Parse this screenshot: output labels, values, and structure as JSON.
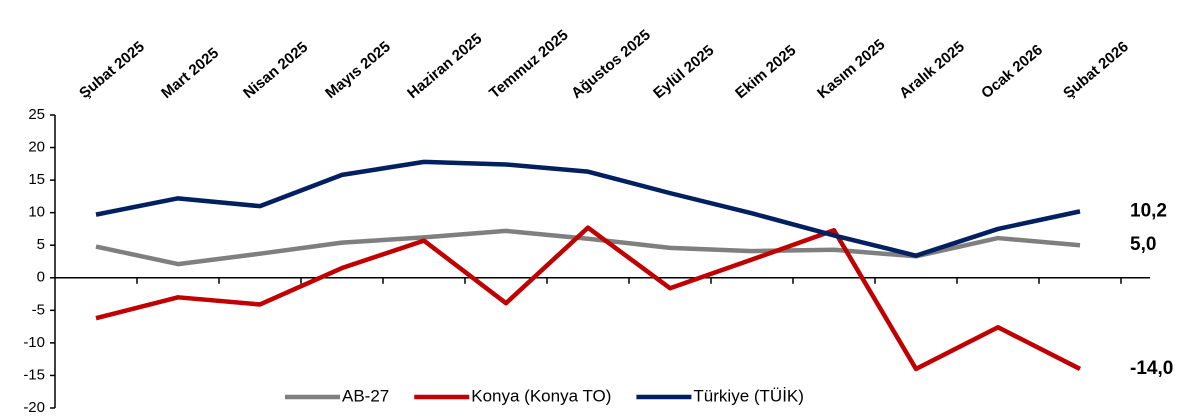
{
  "chart_data": {
    "type": "line",
    "categories": [
      "Şubat 2025",
      "Mart 2025",
      "Nisan 2025",
      "Mayıs 2025",
      "Haziran 2025",
      "Temmuz 2025",
      "Ağustos 2025",
      "Eylül 2025",
      "Ekim 2025",
      "Kasım 2025",
      "Aralık 2025",
      "Ocak 2026",
      "Şubat 2026"
    ],
    "series": [
      {
        "name": "AB-27",
        "color": "#7f7f7f",
        "values": [
          4.8,
          2.1,
          3.7,
          5.4,
          6.2,
          7.2,
          6.0,
          4.6,
          4.1,
          4.3,
          3.3,
          6.1,
          5.0
        ],
        "value_labels": [
          null,
          null,
          null,
          null,
          null,
          null,
          null,
          null,
          null,
          null,
          null,
          null,
          "5,0"
        ]
      },
      {
        "name": "Konya (Konya TO)",
        "color": "#c00000",
        "values": [
          -6.2,
          -3.0,
          -4.1,
          1.5,
          5.7,
          -3.9,
          7.7,
          -1.6,
          2.8,
          7.3,
          -14.0,
          -7.6,
          -14.0
        ],
        "value_labels": [
          null,
          null,
          null,
          null,
          null,
          null,
          null,
          null,
          null,
          null,
          null,
          null,
          "-14,0"
        ]
      },
      {
        "name": "Türkiye (TÜİK)",
        "color": "#002060",
        "values": [
          9.7,
          12.2,
          11.0,
          15.8,
          17.8,
          17.4,
          16.3,
          13.0,
          9.9,
          6.5,
          3.4,
          7.5,
          10.2
        ],
        "value_labels": [
          null,
          null,
          null,
          null,
          null,
          null,
          null,
          null,
          null,
          null,
          null,
          null,
          "10,2"
        ]
      }
    ],
    "ylim": [
      -20,
      25
    ],
    "yticks": [
      -20,
      -15,
      -10,
      -5,
      0,
      5,
      10,
      15,
      20,
      25
    ],
    "legend": "bottom"
  }
}
